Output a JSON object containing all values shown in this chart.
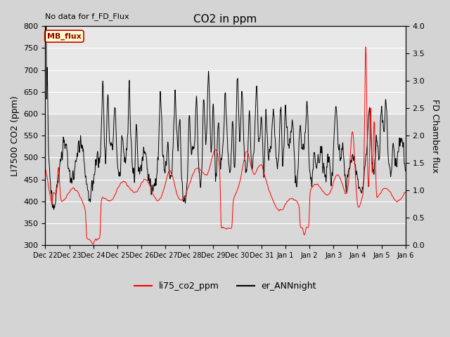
{
  "title": "CO2 in ppm",
  "ylabel_left": "LI7500 CO2 (ppm)",
  "ylabel_right": "FD Chamber flux",
  "ylim_left": [
    300,
    800
  ],
  "ylim_right": [
    0.0,
    4.0
  ],
  "yticks_left": [
    300,
    350,
    400,
    450,
    500,
    550,
    600,
    650,
    700,
    750,
    800
  ],
  "yticks_right": [
    0.0,
    0.5,
    1.0,
    1.5,
    2.0,
    2.5,
    3.0,
    3.5,
    4.0
  ],
  "no_data_text": "No data for f_FD_Flux",
  "mb_flux_label": "MB_flux",
  "legend_labels": [
    "li75_co2_ppm",
    "er_ANNnight"
  ],
  "red_color": "#ff0000",
  "black_color": "#000000",
  "fig_bg_color": "#e0e0e0",
  "plot_bg_upper": "#e8e8e8",
  "plot_bg_lower": "#d0d0d0",
  "grid_color": "#ffffff",
  "n_points": 3360
}
